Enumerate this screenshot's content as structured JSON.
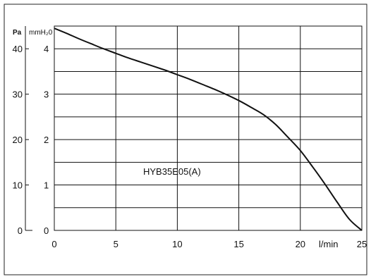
{
  "chart_data": {
    "type": "line",
    "title": "",
    "xlabel": "l/min",
    "ylabel_left": "Pa",
    "ylabel_right": "mmH₂0",
    "xlim": [
      0,
      25
    ],
    "ylim": [
      0,
      4.5
    ],
    "grid": true,
    "x_ticks": [
      "0",
      "5",
      "10",
      "15",
      "20",
      "25"
    ],
    "y_ticks_pa": [
      "0",
      "10",
      "20",
      "30",
      "40"
    ],
    "y_ticks_mmh2o": [
      "0",
      "1",
      "2",
      "3",
      "4"
    ],
    "annotation": "HYB35E05(A)",
    "series": [
      {
        "x": [
          0,
          1,
          2,
          3,
          4,
          5,
          6,
          7,
          8,
          9,
          10,
          11,
          12,
          13,
          14,
          15,
          16,
          17,
          18,
          19,
          20,
          21,
          22,
          23,
          24,
          25
        ],
        "y": [
          4.45,
          4.34,
          4.22,
          4.11,
          4.0,
          3.9,
          3.8,
          3.71,
          3.62,
          3.53,
          3.43,
          3.33,
          3.22,
          3.11,
          2.99,
          2.86,
          2.71,
          2.55,
          2.33,
          2.05,
          1.76,
          1.4,
          1.02,
          0.62,
          0.24,
          0.0
        ]
      }
    ]
  }
}
